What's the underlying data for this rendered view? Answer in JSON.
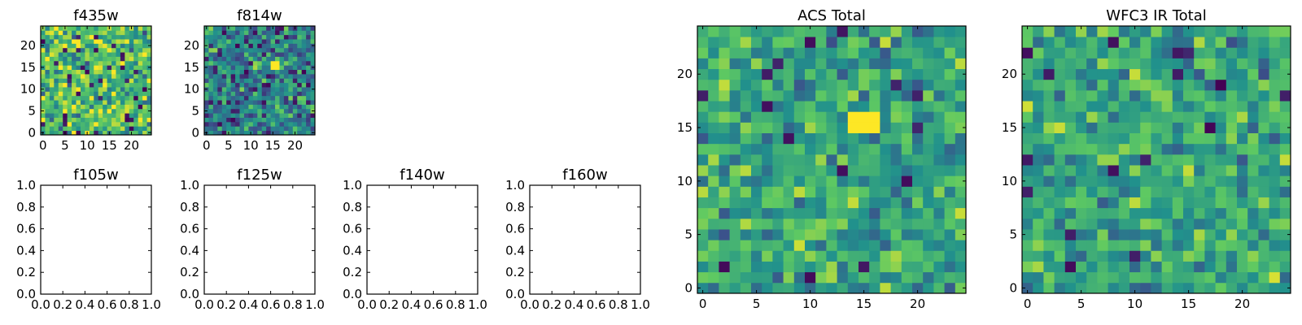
{
  "colormap": [
    "#440154",
    "#3b528b",
    "#21918c",
    "#5ec962",
    "#fde725"
  ],
  "chart_data": [
    {
      "type": "heatmap",
      "title": "f435w",
      "grid_size": 25,
      "xlim": [
        -0.5,
        24.5
      ],
      "ylim": [
        -0.5,
        24.5
      ],
      "xticks": [
        0,
        5,
        10,
        15,
        20
      ],
      "yticks": [
        0,
        5,
        10,
        15,
        20
      ],
      "seed": 11,
      "mean": 0.68,
      "spread": 0.22,
      "dark_fraction": 0.05,
      "hotspot": null
    },
    {
      "type": "heatmap",
      "title": "f814w",
      "grid_size": 25,
      "xlim": [
        -0.5,
        24.5
      ],
      "ylim": [
        -0.5,
        24.5
      ],
      "xticks": [
        0,
        5,
        10,
        15,
        20
      ],
      "yticks": [
        0,
        5,
        10,
        15,
        20
      ],
      "seed": 23,
      "mean": 0.45,
      "spread": 0.2,
      "dark_fraction": 0.06,
      "hotspot": {
        "x": [
          15,
          16
        ],
        "y": [
          15,
          16
        ]
      }
    },
    {
      "type": "heatmap",
      "title": "ACS Total",
      "grid_size": 25,
      "xlim": [
        -0.5,
        24.5
      ],
      "ylim": [
        -0.5,
        24.5
      ],
      "xticks": [
        0,
        5,
        10,
        15,
        20
      ],
      "yticks": [
        0,
        5,
        10,
        15,
        20
      ],
      "seed": 37,
      "mean": 0.6,
      "spread": 0.18,
      "dark_fraction": 0.035,
      "hotspot": {
        "x": [
          14,
          16
        ],
        "y": [
          15,
          16
        ]
      }
    },
    {
      "type": "heatmap",
      "title": "WFC3 IR Total",
      "grid_size": 25,
      "xlim": [
        -0.5,
        24.5
      ],
      "ylim": [
        -0.5,
        24.5
      ],
      "xticks": [
        0,
        5,
        10,
        15,
        20
      ],
      "yticks": [
        0,
        5,
        10,
        15,
        20
      ],
      "seed": 53,
      "mean": 0.6,
      "spread": 0.17,
      "dark_fraction": 0.025,
      "hotspot": null
    },
    {
      "type": "empty",
      "title": "f105w",
      "xlim": [
        0,
        1
      ],
      "ylim": [
        0,
        1
      ],
      "xticks": [
        "0.0",
        "0.2",
        "0.4",
        "0.6",
        "0.8",
        "1.0"
      ],
      "yticks": [
        "0.0",
        "0.2",
        "0.4",
        "0.6",
        "0.8",
        "1.0"
      ]
    },
    {
      "type": "empty",
      "title": "f125w",
      "xlim": [
        0,
        1
      ],
      "ylim": [
        0,
        1
      ],
      "xticks": [
        "0.0",
        "0.2",
        "0.4",
        "0.6",
        "0.8",
        "1.0"
      ],
      "yticks": [
        "0.0",
        "0.2",
        "0.4",
        "0.6",
        "0.8",
        "1.0"
      ]
    },
    {
      "type": "empty",
      "title": "f140w",
      "xlim": [
        0,
        1
      ],
      "ylim": [
        0,
        1
      ],
      "xticks": [
        "0.0",
        "0.2",
        "0.4",
        "0.6",
        "0.8",
        "1.0"
      ],
      "yticks": [
        "0.0",
        "0.2",
        "0.4",
        "0.6",
        "0.8",
        "1.0"
      ]
    },
    {
      "type": "empty",
      "title": "f160w",
      "xlim": [
        0,
        1
      ],
      "ylim": [
        0,
        1
      ],
      "xticks": [
        "0.0",
        "0.2",
        "0.4",
        "0.6",
        "0.8",
        "1.0"
      ],
      "yticks": [
        "0.0",
        "0.2",
        "0.4",
        "0.6",
        "0.8",
        "1.0"
      ]
    }
  ]
}
